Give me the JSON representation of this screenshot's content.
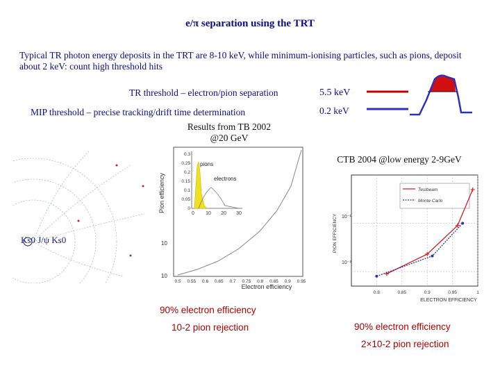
{
  "title": "e/π separation using the TRT",
  "intro": "Typical TR photon energy deposits in the TRT are 8-10 keV, while minimum-ionising particles, such as pions, deposit about 2 keV: count high threshold hits",
  "thresholds": [
    {
      "label": "TR threshold – electron/pion separation",
      "value": "5.5 keV",
      "color": "#c00000"
    },
    {
      "label": "MIP threshold – precise tracking/drift time determination",
      "value": "0.2 keV",
      "color": "#3030c0"
    }
  ],
  "tb2002": {
    "heading_line1": "Results from TB 2002",
    "heading_line2": "@20 GeV",
    "ylabel": "Pion efficiency",
    "xlabel": "Electron efficiency",
    "xticks": [
      "0.5",
      "0.55",
      "0.6",
      "0.65",
      "0.7",
      "0.75",
      "0.8",
      "0.85",
      "0.9",
      "0.95"
    ],
    "ytick_top": "10",
    "ytick_bottom": "10",
    "inset_yticks": [
      "0.3",
      "0.25",
      "0.2",
      "0.15",
      "0.1",
      "0.05",
      "0"
    ],
    "inset_xticks": [
      "0",
      "10",
      "20",
      "30"
    ],
    "inset_pions": "pions",
    "inset_electrons": "electrons",
    "caption_line1": "90% electron efficiency",
    "caption_line2": "10-2 pion rejection",
    "event_label": "Ks0 J/ψ Ks0"
  },
  "ctb2004": {
    "heading": "CTB 2004 @low energy 2-9GeV",
    "ylabel": "PION EFFICIENCY",
    "xlabel": "ELECTRON EFFICIENCY",
    "xticks": [
      "0.8",
      "0.85",
      "0.9",
      "0.95",
      "1"
    ],
    "yticks": [
      "10⁻¹",
      "10⁻²"
    ],
    "legend": [
      "Testbeam",
      "Monte Carlo"
    ],
    "caption_line1": "90% electron efficiency",
    "caption_line2": "2×10-2 pion rejection"
  },
  "chart_data": [
    {
      "type": "line",
      "title": "CTB 2004 @low energy 2-9GeV",
      "xlabel": "ELECTRON EFFICIENCY",
      "ylabel": "PION EFFICIENCY",
      "log_y": true,
      "xlim": [
        0.75,
        1.0
      ],
      "series": [
        {
          "name": "Testbeam",
          "x": [
            0.82,
            0.9,
            0.96,
            0.99
          ],
          "y": [
            0.009,
            0.023,
            0.09,
            0.5
          ],
          "color": "#d02020"
        },
        {
          "name": "Monte Carlo",
          "x": [
            0.8,
            0.91,
            0.97
          ],
          "y": [
            0.008,
            0.021,
            0.1
          ],
          "color": "#3030a0"
        }
      ]
    }
  ]
}
